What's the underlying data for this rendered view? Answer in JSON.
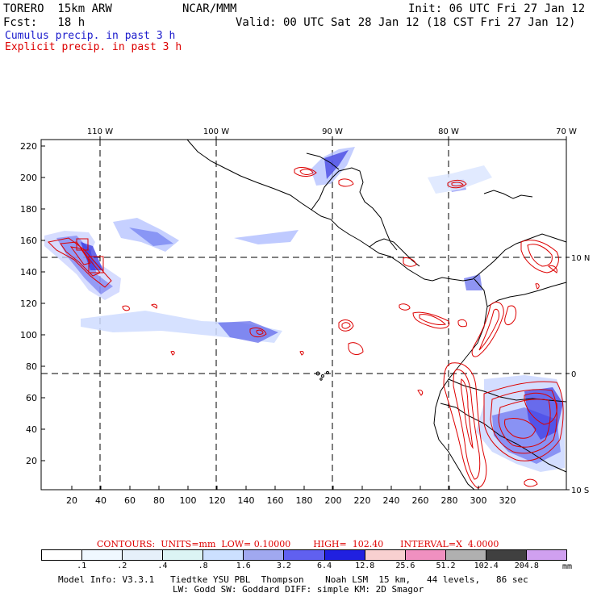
{
  "header": {
    "model": "TORERO  15km ARW",
    "org": "NCAR/MMM",
    "init": "Init: 06 UTC Fri 27 Jan 12",
    "fcst": "Fcst:   18 h",
    "valid": "Valid: 00 UTC Sat 28 Jan 12 (18 CST Fri 27 Jan 12)",
    "cumulus": "Cumulus precip. in past 3 h",
    "explicit": "Explicit precip. in past 3 h"
  },
  "map": {
    "lon_labels": [
      "110 W",
      "100 W",
      "90 W",
      "80 W",
      "70 W"
    ],
    "lat_labels": [
      "10 N",
      "0",
      "10 S"
    ],
    "y_ticks": [
      "220",
      "200",
      "180",
      "160",
      "140",
      "120",
      "100",
      "80",
      "60",
      "40",
      "20"
    ],
    "x_ticks": [
      "20",
      "40",
      "60",
      "80",
      "100",
      "120",
      "140",
      "160",
      "180",
      "200",
      "220",
      "240",
      "260",
      "280",
      "300",
      "320"
    ],
    "colors": {
      "cumulus": "#1a1acc",
      "explicit": "#dd0000",
      "coast": "#000000"
    }
  },
  "contours": {
    "text": "CONTOURS:  UNITS=mm  LOW= 0.10000        HIGH=  102.40      INTERVAL=X  4.0000"
  },
  "colorbar": {
    "labels": [
      ".1",
      ".2",
      ".4",
      ".8",
      "1.6",
      "3.2",
      "6.4",
      "12.8",
      "25.6",
      "51.2",
      "102.4",
      "204.8"
    ],
    "unit": "mm",
    "colors": [
      "#ffffff",
      "#f0f8ff",
      "#e6f0fa",
      "#dcf4f4",
      "#cce0ff",
      "#a0a8f0",
      "#6060f0",
      "#2020e0",
      "#f8d0d0",
      "#f090c0",
      "#b0b0b0",
      "#404040",
      "#d0a0f0"
    ]
  },
  "footer": {
    "line1": "Model Info: V3.3.1   Tiedtke YSU PBL  Thompson    Noah LSM  15 km,   44 levels,   86 sec",
    "line2": "LW: Godd SW: Goddard DIFF: simple KM: 2D Smagor"
  }
}
